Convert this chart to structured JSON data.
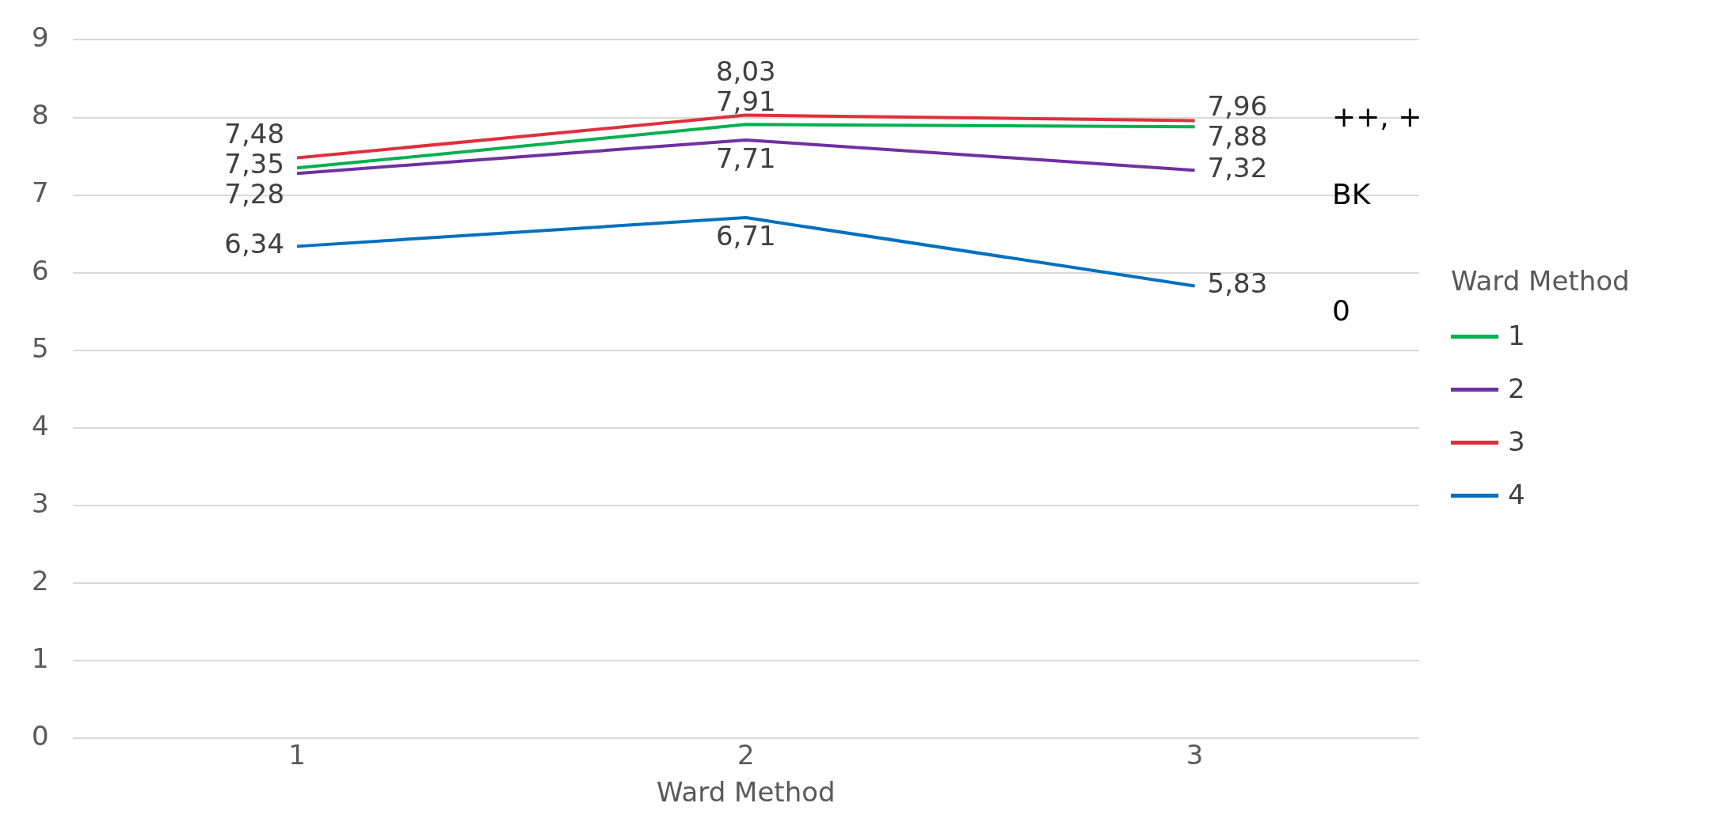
{
  "chart_data": {
    "type": "line",
    "xlabel": "Ward Method",
    "legend_title": "Ward Method",
    "categories": [
      "1",
      "2",
      "3"
    ],
    "series": [
      {
        "name": "1",
        "color": "#00b050",
        "values": [
          7.35,
          7.91,
          7.88
        ],
        "value_labels": [
          "7,35",
          "7,91",
          "7,88"
        ]
      },
      {
        "name": "2",
        "color": "#7030a0",
        "values": [
          7.28,
          7.71,
          7.32
        ],
        "value_labels": [
          "7,28",
          "7,71",
          "7,32"
        ]
      },
      {
        "name": "3",
        "color": "#e0303c",
        "values": [
          7.48,
          8.03,
          7.96
        ],
        "value_labels": [
          "7,48",
          "8,03",
          "7,96"
        ]
      },
      {
        "name": "4",
        "color": "#0070c0",
        "values": [
          6.34,
          6.71,
          5.83
        ],
        "value_labels": [
          "6,34",
          "6,71",
          "5,83"
        ]
      }
    ],
    "ylim": [
      0,
      9
    ],
    "yticks": [
      0,
      1,
      2,
      3,
      4,
      5,
      6,
      7,
      8,
      9
    ],
    "grid": "y",
    "legend": "right",
    "marker": "none",
    "line_style": "solid",
    "annotations": [
      "++, +",
      "BK",
      "0"
    ]
  }
}
